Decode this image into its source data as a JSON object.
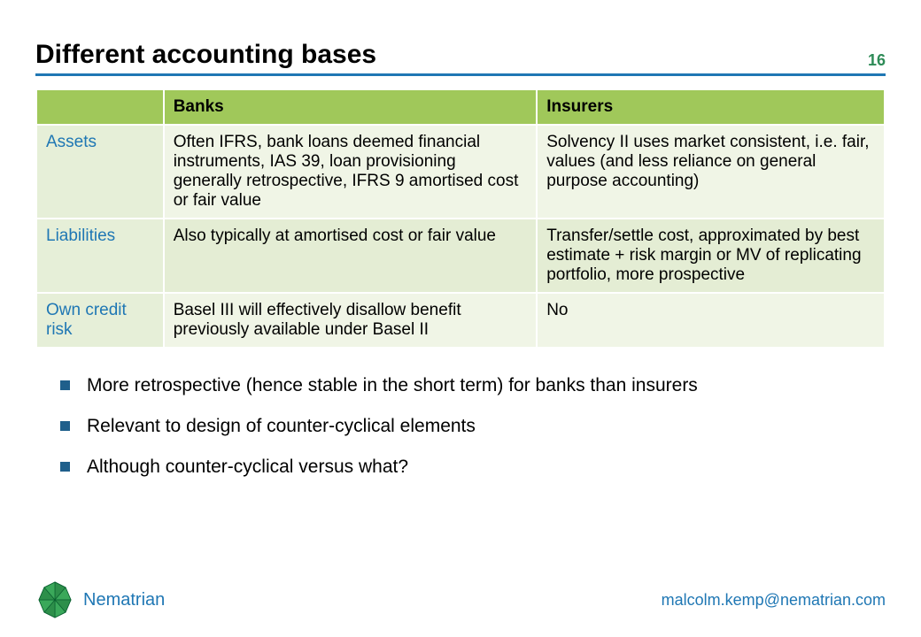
{
  "title": "Different accounting bases",
  "page_number": "16",
  "colors": {
    "rule": "#1f77b4",
    "page_num": "#2e8b57",
    "table_header_bg": "#a0c85a",
    "row_label_bg": "#e6efd8",
    "row_label_text": "#1f77b4",
    "cell_bg_light": "#f0f5e6",
    "cell_bg_dark": "#e4edd4",
    "bullet_marker": "#1f5f8b",
    "brand_text": "#1f77b4",
    "contact_text": "#1f77b4",
    "logo_stroke": "#0a6030",
    "logo_fill_a": "#3aa85a",
    "logo_fill_b": "#2d8f4a"
  },
  "table": {
    "columns": [
      "",
      "Banks",
      "Insurers"
    ],
    "rows": [
      {
        "label": "Assets",
        "banks": "Often IFRS, bank loans deemed financial instruments, IAS 39, loan provisioning generally retrospective, IFRS 9 amortised cost or fair value",
        "insurers": "Solvency II uses market consistent, i.e. fair, values (and less reliance on general purpose accounting)"
      },
      {
        "label": "Liabilities",
        "banks": "Also typically at amortised cost or fair value",
        "insurers": "Transfer/settle cost, approximated by best estimate + risk margin or MV of replicating portfolio, more prospective"
      },
      {
        "label": "Own credit risk",
        "banks": "Basel III will effectively disallow benefit previously available under Basel II",
        "insurers": "No"
      }
    ],
    "col_widths": [
      "15%",
      "44%",
      "41%"
    ]
  },
  "bullets": [
    "More retrospective (hence stable in the short term) for banks than insurers",
    "Relevant to design of counter-cyclical elements",
    "Although counter-cyclical versus what?"
  ],
  "brand": "Nematrian",
  "contact": "malcolm.kemp@nematrian.com"
}
